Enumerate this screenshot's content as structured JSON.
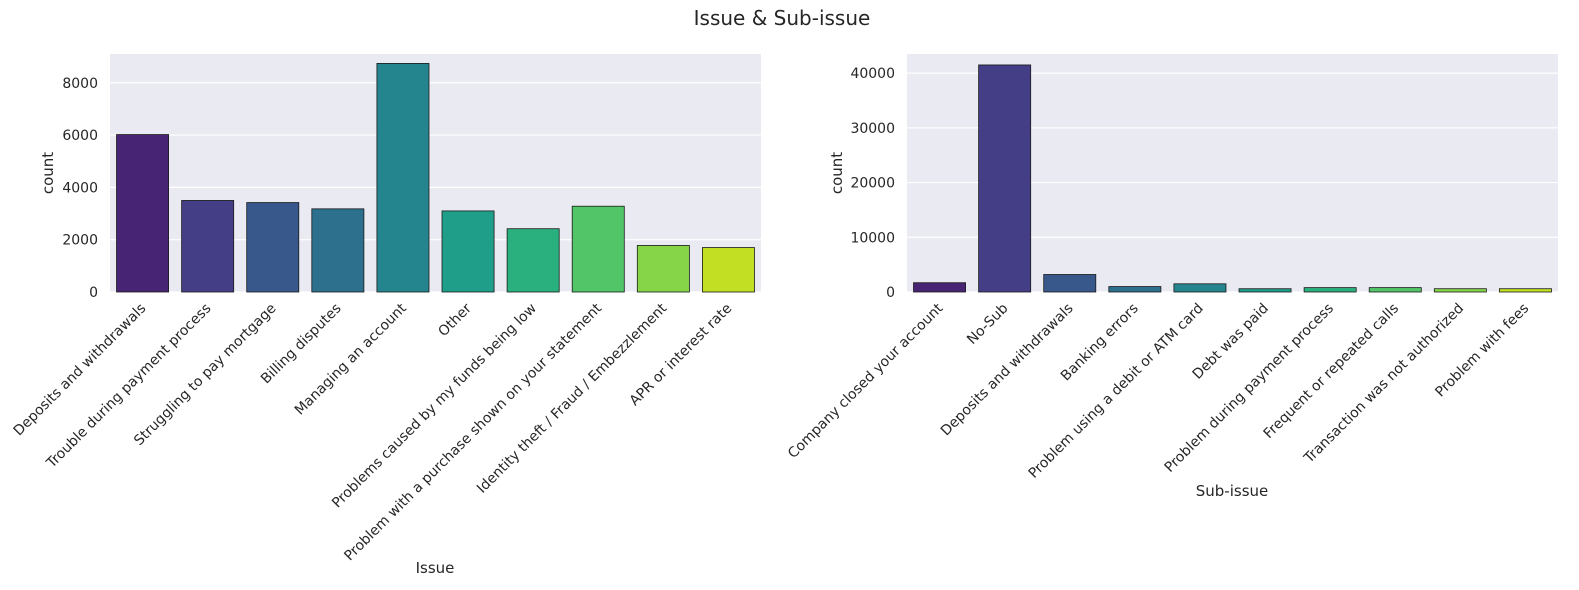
{
  "figure": {
    "title": "Issue & Sub-issue"
  },
  "chart_data": [
    {
      "type": "bar",
      "xlabel": "Issue",
      "ylabel": "count",
      "ylim": [
        0,
        9100
      ],
      "yticks": [
        0,
        2000,
        4000,
        6000,
        8000
      ],
      "grid": true,
      "categories": [
        "Deposits and withdrawals",
        "Trouble during payment process",
        "Struggling to pay mortgage",
        "Billing disputes",
        "Managing an account",
        "Other",
        "Problems caused by my funds being low",
        "Problem with a purchase shown on your statement",
        "Identity theft / Fraud / Embezzlement",
        "APR or interest rate"
      ],
      "values": [
        6020,
        3500,
        3420,
        3180,
        8740,
        3100,
        2420,
        3280,
        1780,
        1700
      ],
      "colors": [
        "#482475",
        "#433e85",
        "#38588c",
        "#2d708e",
        "#25858e",
        "#1f9e89",
        "#2ab07f",
        "#52c569",
        "#86d549",
        "#c2df23"
      ]
    },
    {
      "type": "bar",
      "xlabel": "Sub-issue",
      "ylabel": "count",
      "ylim": [
        0,
        43500
      ],
      "yticks": [
        0,
        10000,
        20000,
        30000,
        40000
      ],
      "grid": true,
      "categories": [
        "Company closed your account",
        "No-Sub",
        "Deposits and withdrawals",
        "Banking errors",
        "Problem using a debit or ATM card",
        "Debt was paid",
        "Problem during payment process",
        "Frequent or repeated calls",
        "Transaction was not authorized",
        "Problem with fees"
      ],
      "values": [
        1700,
        41500,
        3200,
        1000,
        1500,
        600,
        800,
        800,
        600,
        600
      ],
      "colors": [
        "#482475",
        "#433e85",
        "#38588c",
        "#2d708e",
        "#25858e",
        "#1f9e89",
        "#2ab07f",
        "#52c569",
        "#86d549",
        "#c2df23"
      ]
    }
  ]
}
